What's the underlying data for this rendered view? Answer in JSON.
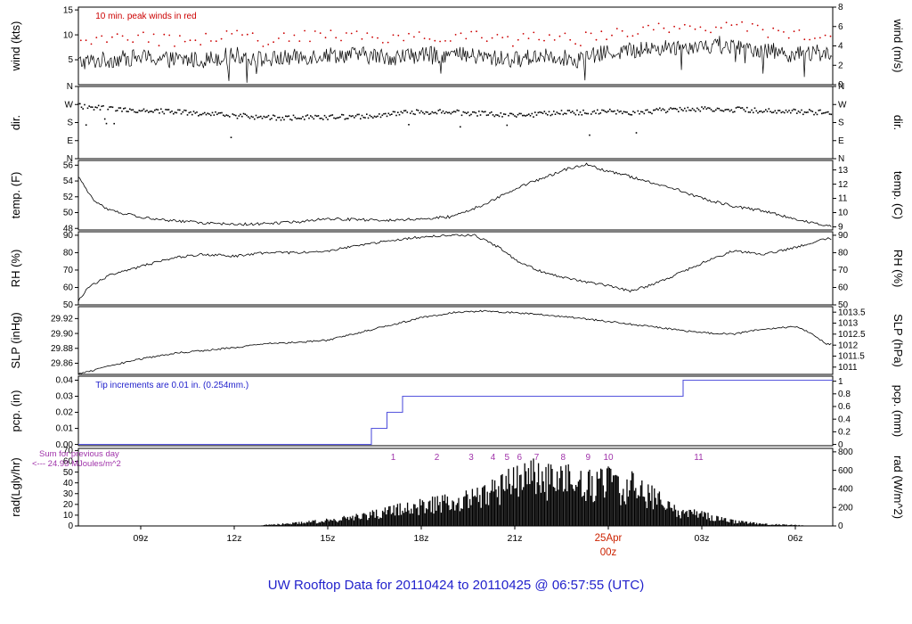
{
  "title": "UW Rooftop Data for 20110424  to  20110425 @ 06:57:55  (UTC)",
  "colors": {
    "trace": "#000000",
    "peak_red": "#cc0000",
    "pcp_blue": "#5555dd",
    "annotation_blue": "#2222cc",
    "annotation_purple": "#a033aa",
    "date_red": "#cc2200",
    "title_blue": "#2222cc"
  },
  "x_axis": {
    "start_hour": 7,
    "end_hour": 31.2,
    "ticks": [
      {
        "hour": 9,
        "label": "09z"
      },
      {
        "hour": 12,
        "label": "12z"
      },
      {
        "hour": 15,
        "label": "15z"
      },
      {
        "hour": 18,
        "label": "18z"
      },
      {
        "hour": 21,
        "label": "21z"
      },
      {
        "hour": 24,
        "label": "25Apr",
        "label2": "00z",
        "color": "#cc2200"
      },
      {
        "hour": 27,
        "label": "03z"
      },
      {
        "hour": 30,
        "label": "06z"
      }
    ]
  },
  "chart_data": [
    {
      "key": "wind",
      "type": "noisy-line",
      "ylabel_left": "wind (kts)",
      "ylabel_right": "wind (m/s)",
      "ylim": [
        0,
        15.56
      ],
      "yticks_left": [
        {
          "v": 5,
          "label": "5"
        },
        {
          "v": 10,
          "label": "10"
        },
        {
          "v": 15,
          "label": "15"
        }
      ],
      "yticks_right": [
        {
          "v": 0,
          "label": "0"
        },
        {
          "v": 3.89,
          "label": "2"
        },
        {
          "v": 7.78,
          "label": "4"
        },
        {
          "v": 11.67,
          "label": "6"
        },
        {
          "v": 15.56,
          "label": "8"
        }
      ],
      "annotation": {
        "text": "10 min. peak winds in red",
        "color": "#cc0000"
      },
      "noise": 1.7,
      "anchors": [
        [
          7,
          4.5
        ],
        [
          8,
          5
        ],
        [
          9,
          5.5
        ],
        [
          10,
          5
        ],
        [
          11,
          5
        ],
        [
          12,
          6
        ],
        [
          13,
          5
        ],
        [
          14,
          5.5
        ],
        [
          15,
          6
        ],
        [
          16,
          6
        ],
        [
          17,
          5.5
        ],
        [
          18,
          6
        ],
        [
          19,
          6
        ],
        [
          20,
          5.5
        ],
        [
          21,
          5
        ],
        [
          22,
          6
        ],
        [
          23,
          5
        ],
        [
          24,
          6.5
        ],
        [
          25,
          7
        ],
        [
          26,
          7.5
        ],
        [
          27,
          8
        ],
        [
          28,
          7.5
        ],
        [
          29,
          7
        ],
        [
          30,
          6
        ],
        [
          31,
          6.5
        ]
      ],
      "peaks": {
        "offset": 2.6,
        "jitter": 2.6,
        "color": "#cc0000"
      }
    },
    {
      "key": "dir",
      "type": "scatter",
      "ylabel_left": "dir.",
      "ylabel_right": "dir.",
      "ylim": [
        0,
        360
      ],
      "yticks_left": [
        {
          "v": 0,
          "label": "N"
        },
        {
          "v": 90,
          "label": "E"
        },
        {
          "v": 180,
          "label": "S"
        },
        {
          "v": 270,
          "label": "W"
        },
        {
          "v": 360,
          "label": "N"
        }
      ],
      "yticks_right": [
        {
          "v": 0,
          "label": "N"
        },
        {
          "v": 90,
          "label": "E"
        },
        {
          "v": 180,
          "label": "S"
        },
        {
          "v": 270,
          "label": "W"
        },
        {
          "v": 360,
          "label": "N"
        }
      ],
      "noise": 26,
      "anchors": [
        [
          7,
          262
        ],
        [
          8,
          250
        ],
        [
          9,
          240
        ],
        [
          10,
          235
        ],
        [
          11,
          225
        ],
        [
          12,
          215
        ],
        [
          13,
          205
        ],
        [
          14,
          205
        ],
        [
          15,
          205
        ],
        [
          16,
          210
        ],
        [
          17,
          220
        ],
        [
          18,
          235
        ],
        [
          19,
          230
        ],
        [
          20,
          225
        ],
        [
          21,
          215
        ],
        [
          22,
          225
        ],
        [
          23,
          230
        ],
        [
          24,
          235
        ],
        [
          25,
          230
        ],
        [
          26,
          245
        ],
        [
          27,
          250
        ],
        [
          28,
          245
        ],
        [
          29,
          240
        ],
        [
          30,
          235
        ],
        [
          31,
          230
        ]
      ]
    },
    {
      "key": "temp",
      "type": "line",
      "ylabel_left": "temp. (F)",
      "ylabel_right": "temp. (C)",
      "ylim": [
        47.8,
        56.6
      ],
      "yticks_left": [
        {
          "v": 48,
          "label": "48"
        },
        {
          "v": 50,
          "label": "50"
        },
        {
          "v": 52,
          "label": "52"
        },
        {
          "v": 54,
          "label": "54"
        },
        {
          "v": 56,
          "label": "56"
        }
      ],
      "yticks_right": [
        {
          "v": 48.2,
          "label": "9"
        },
        {
          "v": 50.0,
          "label": "10"
        },
        {
          "v": 51.8,
          "label": "11"
        },
        {
          "v": 53.6,
          "label": "12"
        },
        {
          "v": 55.4,
          "label": "13"
        }
      ],
      "noise": 0.18,
      "anchors": [
        [
          7,
          54.5
        ],
        [
          7.5,
          51.5
        ],
        [
          8,
          50.3
        ],
        [
          9,
          49.4
        ],
        [
          10,
          49.0
        ],
        [
          11,
          48.7
        ],
        [
          12,
          48.5
        ],
        [
          13,
          48.6
        ],
        [
          14,
          48.8
        ],
        [
          15,
          49.2
        ],
        [
          16,
          49.1
        ],
        [
          17,
          49.0
        ],
        [
          18,
          49.2
        ],
        [
          19,
          49.5
        ],
        [
          20,
          51.0
        ],
        [
          21,
          53.0
        ],
        [
          21.5,
          53.8
        ],
        [
          22,
          54.5
        ],
        [
          22.5,
          55.3
        ],
        [
          23,
          55.9
        ],
        [
          23.3,
          56.1
        ],
        [
          24,
          55.2
        ],
        [
          24.5,
          54.8
        ],
        [
          25,
          54.2
        ],
        [
          26,
          53.2
        ],
        [
          27,
          51.8
        ],
        [
          28,
          50.8
        ],
        [
          29,
          50.2
        ],
        [
          30,
          49.2
        ],
        [
          31,
          48.3
        ]
      ]
    },
    {
      "key": "rh",
      "type": "line",
      "ylabel_left": "RH (%)",
      "ylabel_right": "RH (%)",
      "ylim": [
        50,
        92
      ],
      "yticks_left": [
        {
          "v": 50,
          "label": "50"
        },
        {
          "v": 60,
          "label": "60"
        },
        {
          "v": 70,
          "label": "70"
        },
        {
          "v": 80,
          "label": "80"
        },
        {
          "v": 90,
          "label": "90"
        }
      ],
      "yticks_right": [
        {
          "v": 50,
          "label": "50"
        },
        {
          "v": 60,
          "label": "60"
        },
        {
          "v": 70,
          "label": "70"
        },
        {
          "v": 80,
          "label": "80"
        },
        {
          "v": 90,
          "label": "90"
        }
      ],
      "noise": 0.7,
      "anchors": [
        [
          7,
          52
        ],
        [
          7.3,
          60
        ],
        [
          8,
          67
        ],
        [
          9,
          72
        ],
        [
          10,
          77
        ],
        [
          11,
          79
        ],
        [
          12,
          78
        ],
        [
          13,
          80
        ],
        [
          14,
          80
        ],
        [
          15,
          81
        ],
        [
          16,
          84
        ],
        [
          17,
          87
        ],
        [
          18,
          89
        ],
        [
          19,
          90
        ],
        [
          19.7,
          90
        ],
        [
          20.5,
          83
        ],
        [
          21,
          76
        ],
        [
          22,
          68
        ],
        [
          23,
          64
        ],
        [
          24,
          61
        ],
        [
          24.7,
          58
        ],
        [
          25.3,
          61
        ],
        [
          26,
          66
        ],
        [
          27,
          74
        ],
        [
          28,
          81
        ],
        [
          29,
          79
        ],
        [
          30,
          83
        ],
        [
          31,
          88
        ]
      ]
    },
    {
      "key": "slp",
      "type": "line",
      "ylabel_left": "SLP (inHg)",
      "ylabel_right": "SLP (hPa)",
      "ylim": [
        29.845,
        29.936
      ],
      "yticks_left": [
        {
          "v": 29.86,
          "label": "29.86"
        },
        {
          "v": 29.88,
          "label": "29.88"
        },
        {
          "v": 29.9,
          "label": "29.90"
        },
        {
          "v": 29.92,
          "label": "29.92"
        }
      ],
      "yticks_right": [
        {
          "v": 29.8548,
          "label": "1011"
        },
        {
          "v": 29.8696,
          "label": "1011.5"
        },
        {
          "v": 29.8843,
          "label": "1012"
        },
        {
          "v": 29.8991,
          "label": "1012.5"
        },
        {
          "v": 29.9139,
          "label": "1013"
        },
        {
          "v": 29.9286,
          "label": "1013.5"
        }
      ],
      "noise": 0.0012,
      "anchors": [
        [
          7,
          29.846
        ],
        [
          8,
          29.856
        ],
        [
          9,
          29.866
        ],
        [
          10,
          29.873
        ],
        [
          11,
          29.877
        ],
        [
          12,
          29.881
        ],
        [
          13,
          29.886
        ],
        [
          14,
          29.888
        ],
        [
          15,
          29.891
        ],
        [
          16,
          29.901
        ],
        [
          17,
          29.911
        ],
        [
          18,
          29.921
        ],
        [
          19,
          29.928
        ],
        [
          20,
          29.93
        ],
        [
          21,
          29.928
        ],
        [
          22,
          29.925
        ],
        [
          23,
          29.921
        ],
        [
          24,
          29.916
        ],
        [
          25,
          29.911
        ],
        [
          26,
          29.906
        ],
        [
          27,
          29.901
        ],
        [
          28,
          29.899
        ],
        [
          29,
          29.906
        ],
        [
          30,
          29.909
        ],
        [
          30.5,
          29.901
        ],
        [
          31,
          29.886
        ]
      ]
    },
    {
      "key": "pcp",
      "type": "step",
      "ylabel_left": "pcp. (in)",
      "ylabel_right": "pcp. (mm)",
      "ylim": [
        -0.0008,
        0.0425
      ],
      "yticks_left": [
        {
          "v": 0.0,
          "label": "0.00"
        },
        {
          "v": 0.01,
          "label": "0.01"
        },
        {
          "v": 0.02,
          "label": "0.02"
        },
        {
          "v": 0.03,
          "label": "0.03"
        },
        {
          "v": 0.04,
          "label": "0.04"
        }
      ],
      "yticks_right": [
        {
          "v": 0,
          "label": "0"
        },
        {
          "v": 0.00787,
          "label": "0.2"
        },
        {
          "v": 0.01575,
          "label": "0.4"
        },
        {
          "v": 0.02362,
          "label": "0.6"
        },
        {
          "v": 0.0315,
          "label": "0.8"
        },
        {
          "v": 0.03937,
          "label": "1"
        }
      ],
      "annotation": {
        "text": "Tip increments are 0.01 in. (0.254mm.)",
        "color": "#2222cc"
      },
      "line_color": "#5555dd",
      "anchors": [
        [
          7,
          0
        ],
        [
          16.4,
          0
        ],
        [
          16.4,
          0.01
        ],
        [
          16.9,
          0.01
        ],
        [
          16.9,
          0.02
        ],
        [
          17.4,
          0.02
        ],
        [
          17.4,
          0.03
        ],
        [
          26.4,
          0.03
        ],
        [
          26.4,
          0.04
        ],
        [
          31.2,
          0.04
        ]
      ]
    },
    {
      "key": "rad",
      "type": "spikes",
      "ylabel_left": "rad(Lgly/hr)",
      "ylabel_right": "rad (W/m^2)",
      "ylim": [
        0,
        72
      ],
      "yticks_left": [
        {
          "v": 0,
          "label": "0"
        },
        {
          "v": 10,
          "label": "10"
        },
        {
          "v": 20,
          "label": "20"
        },
        {
          "v": 30,
          "label": "30"
        },
        {
          "v": 40,
          "label": "40"
        },
        {
          "v": 50,
          "label": "50"
        },
        {
          "v": 60,
          "label": "60"
        },
        {
          "v": 70,
          "label": "70"
        }
      ],
      "yticks_right": [
        {
          "v": 0,
          "label": "0"
        },
        {
          "v": 17.2,
          "label": "200"
        },
        {
          "v": 34.4,
          "label": "400"
        },
        {
          "v": 51.6,
          "label": "600"
        },
        {
          "v": 68.8,
          "label": "800"
        }
      ],
      "annotations": [
        {
          "text": "Sum for previous day",
          "color": "#a033aa"
        },
        {
          "text": "<--- 24.93 MJoules/m^2",
          "color": "#a033aa"
        }
      ],
      "hour_markers": {
        "color": "#a033aa",
        "items": [
          {
            "label": "1",
            "hour": 17.1
          },
          {
            "label": "2",
            "hour": 18.5
          },
          {
            "label": "3",
            "hour": 19.6
          },
          {
            "label": "4",
            "hour": 20.3
          },
          {
            "label": "5",
            "hour": 20.75
          },
          {
            "label": "6",
            "hour": 21.15
          },
          {
            "label": "7",
            "hour": 21.7
          },
          {
            "label": "8",
            "hour": 22.55
          },
          {
            "label": "9",
            "hour": 23.35
          },
          {
            "label": "10",
            "hour": 24.0
          },
          {
            "label": "11",
            "hour": 26.9
          }
        ]
      },
      "anchors": [
        [
          12.8,
          0
        ],
        [
          13,
          1
        ],
        [
          14,
          3
        ],
        [
          15,
          6
        ],
        [
          16,
          10
        ],
        [
          17,
          16
        ],
        [
          18,
          22
        ],
        [
          19,
          26
        ],
        [
          20,
          32
        ],
        [
          20.5,
          40
        ],
        [
          21,
          48
        ],
        [
          21.5,
          55
        ],
        [
          22,
          52
        ],
        [
          22.5,
          48
        ],
        [
          23,
          52
        ],
        [
          23.5,
          42
        ],
        [
          24,
          48
        ],
        [
          24.3,
          40
        ],
        [
          24.7,
          45
        ],
        [
          25,
          38
        ],
        [
          25.5,
          30
        ],
        [
          26,
          18
        ],
        [
          26.5,
          14
        ],
        [
          27,
          12
        ],
        [
          27.5,
          8
        ],
        [
          28,
          5
        ],
        [
          29,
          2
        ],
        [
          30,
          1
        ],
        [
          30.5,
          0
        ]
      ]
    }
  ]
}
